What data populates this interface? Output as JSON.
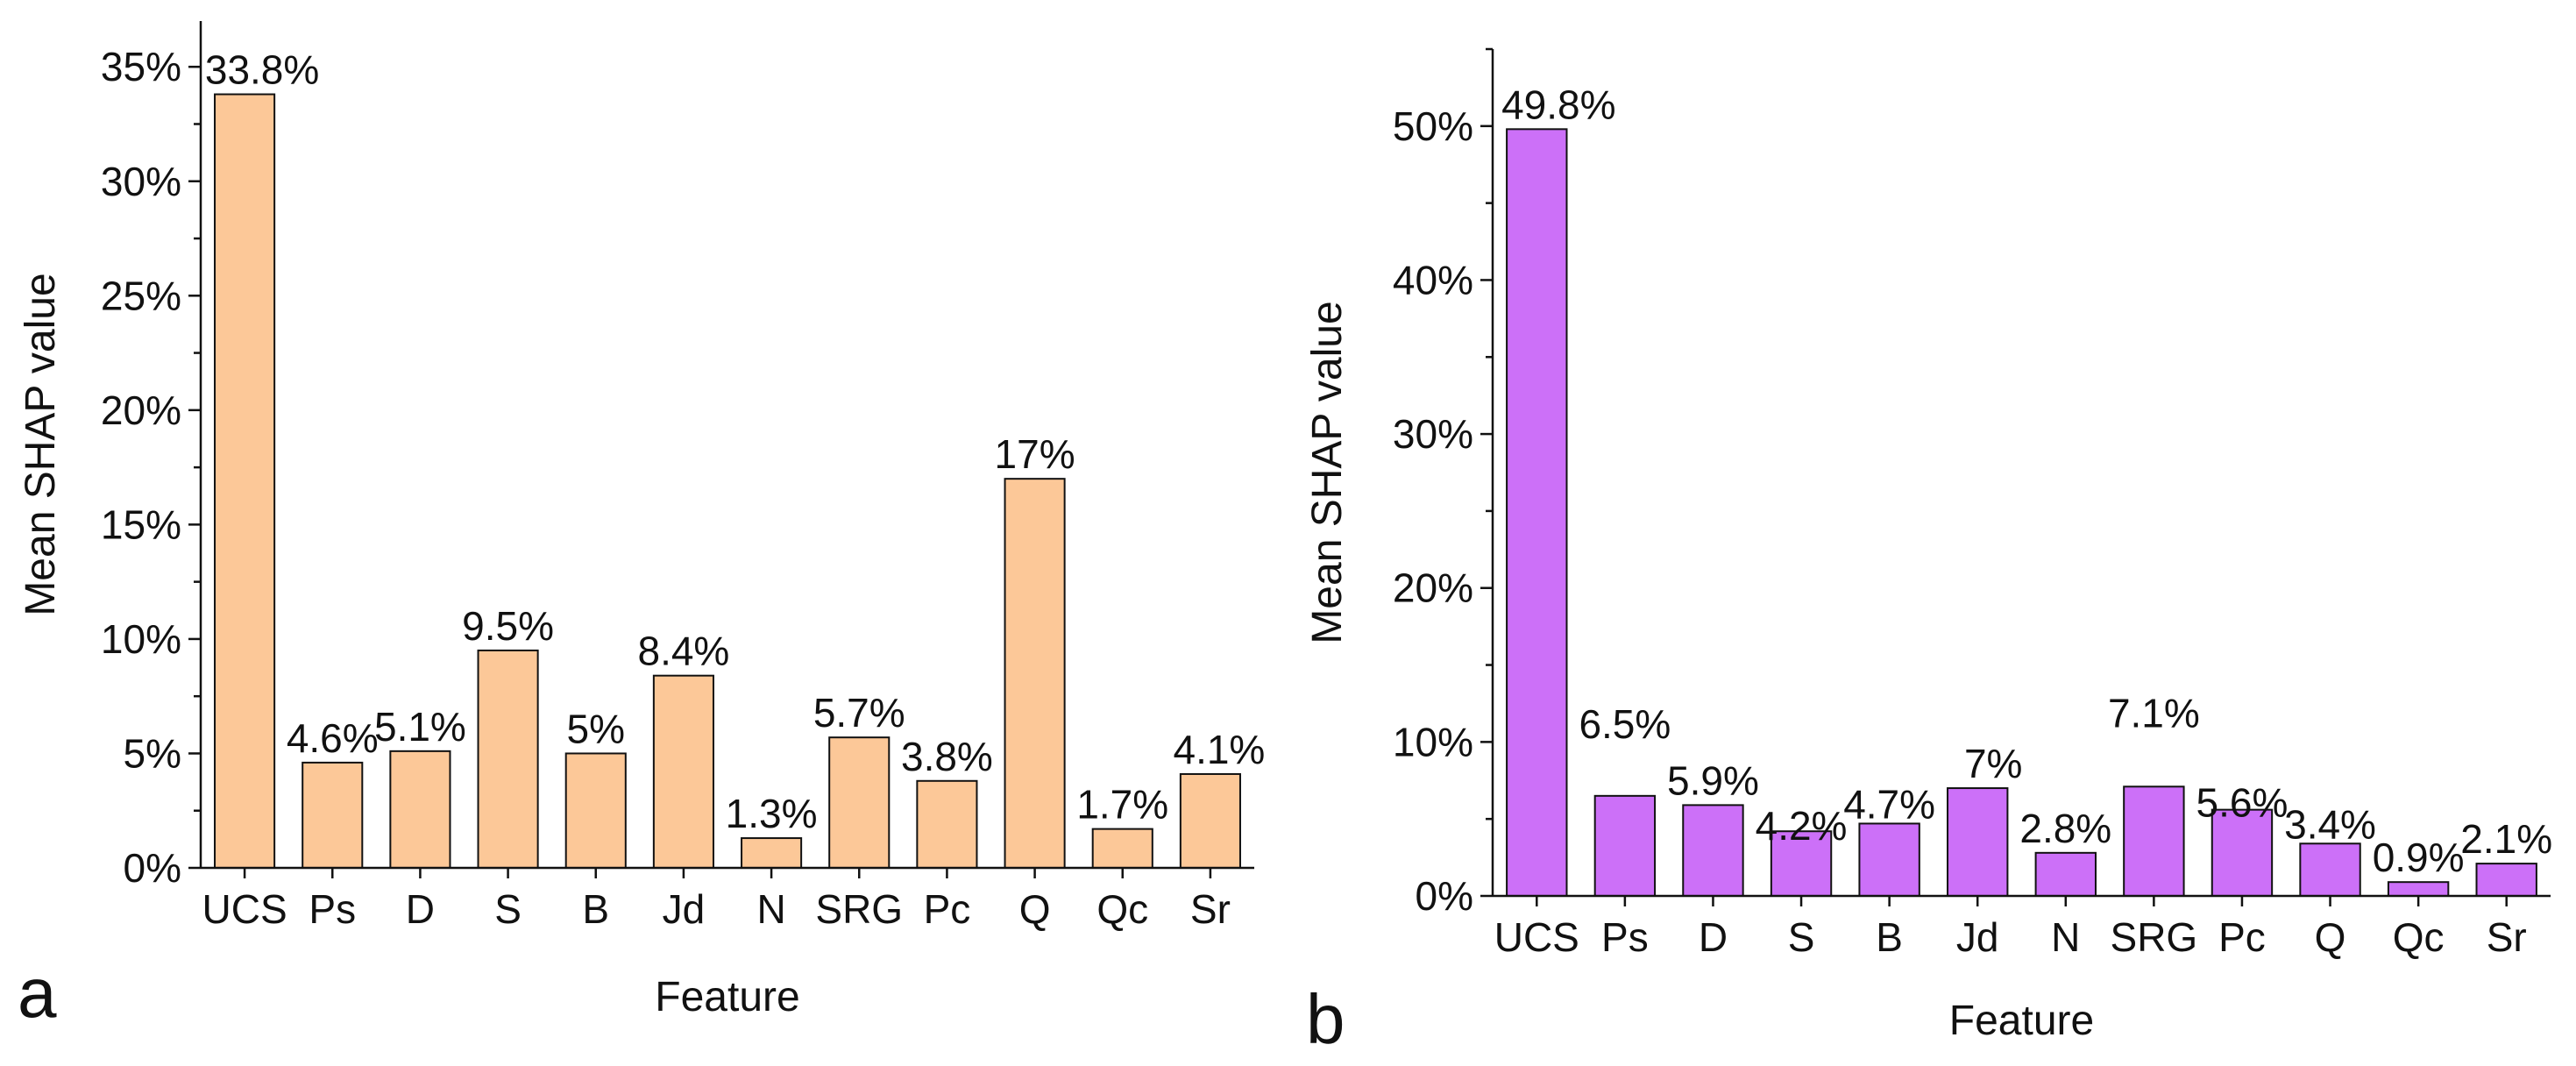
{
  "chart_data": [
    {
      "type": "bar",
      "panel_label": "a",
      "categories": [
        "UCS",
        "Ps",
        "D",
        "S",
        "B",
        "Jd",
        "N",
        "SRG",
        "Pc",
        "Q",
        "Qc",
        "Sr"
      ],
      "values": [
        33.8,
        4.6,
        5.1,
        9.5,
        5.0,
        8.4,
        1.3,
        5.7,
        3.8,
        17.0,
        1.7,
        4.1
      ],
      "data_labels": [
        "33.8%",
        "4.6%",
        "5.1%",
        "9.5%",
        "5%",
        "8.4%",
        "1.3%",
        "5.7%",
        "3.8%",
        "17%",
        "1.7%",
        "4.1%"
      ],
      "xlabel": "Feature",
      "ylabel": "Mean SHAP value",
      "ylim": [
        0,
        37
      ],
      "yticks": [
        0,
        5,
        10,
        15,
        20,
        25,
        30,
        35
      ],
      "ytick_labels": [
        "0%",
        "5%",
        "10%",
        "15%",
        "20%",
        "25%",
        "30%",
        "35%"
      ],
      "bar_color": "#fcc898",
      "grid": false
    },
    {
      "type": "bar",
      "panel_label": "b",
      "categories": [
        "UCS",
        "Ps",
        "D",
        "S",
        "B",
        "Jd",
        "N",
        "SRG",
        "Pc",
        "Q",
        "Qc",
        "Sr"
      ],
      "values": [
        49.8,
        6.5,
        5.9,
        4.2,
        4.7,
        7.0,
        2.8,
        7.1,
        5.6,
        3.4,
        0.9,
        2.1
      ],
      "data_labels": [
        "49.8%",
        "6.5%",
        "5.9%",
        "4.2%",
        "4.7%",
        "7%",
        "2.8%",
        "7.1%",
        "5.6%",
        "3.4%",
        "0.9%",
        "2.1%"
      ],
      "xlabel": "Feature",
      "ylabel": "Mean SHAP value",
      "ylim": [
        0,
        55
      ],
      "yticks": [
        0,
        10,
        20,
        30,
        40,
        50
      ],
      "ytick_labels": [
        "0%",
        "10%",
        "20%",
        "30%",
        "40%",
        "50%"
      ],
      "bar_color": "#cc70f8",
      "grid": false
    }
  ]
}
